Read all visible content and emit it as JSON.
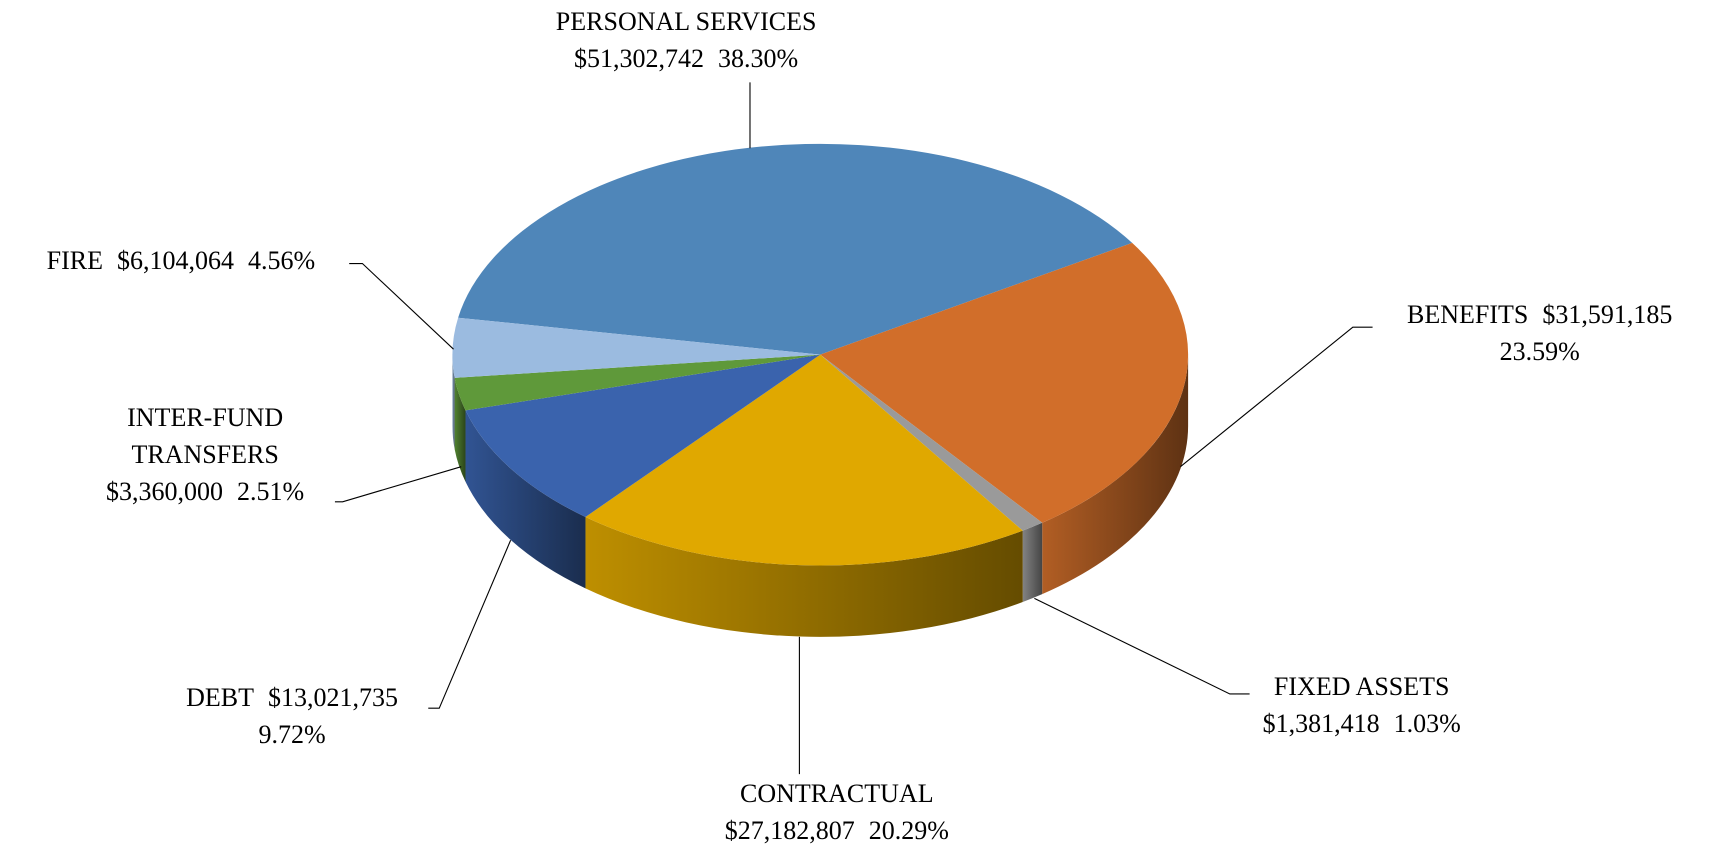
{
  "chart_data": {
    "type": "pie3d",
    "categories": [
      "PERSONAL SERVICES",
      "BENEFITS",
      "FIXED ASSETS",
      "CONTRACTUAL",
      "DEBT",
      "INTER-FUND TRANSFERS",
      "FIRE"
    ],
    "values": [
      51302742,
      31591185,
      1381418,
      27182807,
      13021735,
      3360000,
      6104064
    ],
    "value_labels": [
      "$51,302,742",
      "$31,591,185",
      "$1,381,418",
      "$27,182,807",
      "$13,021,735",
      "$3,360,000",
      "$6,104,064"
    ],
    "percent_labels": [
      "38.30%",
      "23.59%",
      "1.03%",
      "20.29%",
      "9.72%",
      "2.51%",
      "4.56%"
    ],
    "colors": [
      "#4f86b9",
      "#d16e2a",
      "#9a9a9a",
      "#e0a800",
      "#3a63ad",
      "#5f993a",
      "#9bbbe0"
    ]
  }
}
